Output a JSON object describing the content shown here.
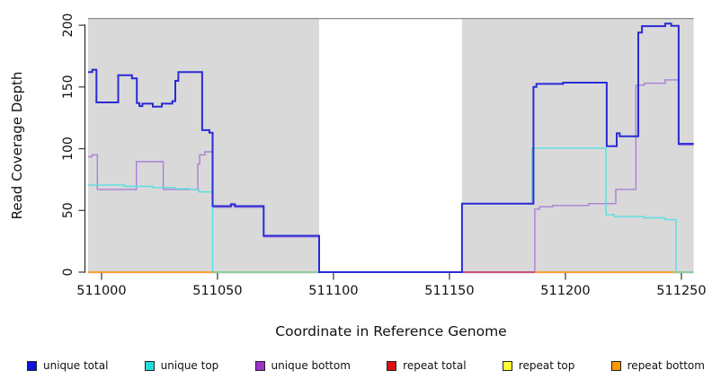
{
  "chart_data": {
    "type": "line",
    "subtype": "step",
    "title": "",
    "xlabel": "Coordinate in Reference Genome",
    "ylabel": "Read Coverage Depth",
    "xlim": [
      510994.2,
      511255.3
    ],
    "ylim": [
      0,
      206
    ],
    "x_ticks": [
      511000,
      511050,
      511100,
      511150,
      511200,
      511250
    ],
    "x_tick_labels": [
      "511000",
      "511050",
      "511100",
      "511150",
      "511200",
      "511250"
    ],
    "y_ticks": [
      0,
      50,
      100,
      150,
      200
    ],
    "y_tick_labels": [
      "0",
      "50",
      "100",
      "150",
      "200"
    ],
    "plot_background": "#d9d9d9",
    "grid": false,
    "legend_position": "bottom",
    "masked_region": {
      "from": 511093.8,
      "to": 511155.4
    },
    "series": [
      {
        "name": "unique total",
        "color": "#2a2ad6",
        "width": 2,
        "draw": true,
        "steps": [
          [
            510994.2,
            162
          ],
          [
            510996.0,
            164
          ],
          [
            510997.8,
            137.5
          ],
          [
            511007.2,
            159.5
          ],
          [
            511013.1,
            157
          ],
          [
            511015.2,
            137
          ],
          [
            511016.3,
            134.5
          ],
          [
            511017.6,
            136.5
          ],
          [
            511022.1,
            134
          ],
          [
            511026.0,
            136.5
          ],
          [
            511030.5,
            138.5
          ],
          [
            511031.8,
            155
          ],
          [
            511033.1,
            162
          ],
          [
            511043.4,
            115
          ],
          [
            511046.5,
            113
          ],
          [
            511047.9,
            53.5
          ],
          [
            511055.8,
            55
          ],
          [
            511057.5,
            53.5
          ],
          [
            511069.9,
            29.5
          ],
          [
            511093.8,
            0
          ],
          [
            511155.4,
            55.5
          ],
          [
            511186.2,
            150
          ],
          [
            511187.5,
            152.5
          ],
          [
            511199.0,
            153.5
          ],
          [
            511217.8,
            102
          ],
          [
            511222.1,
            112.5
          ],
          [
            511223.4,
            110
          ],
          [
            511231.4,
            194
          ],
          [
            511233.0,
            199.3
          ],
          [
            511243.0,
            201.4
          ],
          [
            511245.6,
            199.5
          ],
          [
            511248.8,
            104
          ]
        ]
      },
      {
        "name": "unique top",
        "color": "#58dfe2",
        "width": 1.4,
        "draw": true,
        "steps": [
          [
            510994.2,
            70.5
          ],
          [
            511010.0,
            69.5
          ],
          [
            511022.0,
            68.5
          ],
          [
            511032.0,
            67.5
          ],
          [
            511038.0,
            67
          ],
          [
            511042.0,
            65
          ],
          [
            511047.9,
            0
          ],
          [
            511155.4,
            55.5
          ],
          [
            511185.5,
            100.5
          ],
          [
            511217.5,
            46.5
          ],
          [
            511221.0,
            45
          ],
          [
            511234.0,
            44
          ],
          [
            511243.0,
            42.5
          ],
          [
            511247.7,
            0
          ]
        ]
      },
      {
        "name": "unique bottom",
        "color": "#ab7fd8",
        "width": 1.4,
        "draw": true,
        "steps": [
          [
            510994.2,
            93.5
          ],
          [
            510996.0,
            95
          ],
          [
            510998.2,
            67
          ],
          [
            511015.0,
            89.5
          ],
          [
            511026.6,
            67
          ],
          [
            511041.5,
            87.5
          ],
          [
            511042.3,
            95
          ],
          [
            511044.6,
            97.5
          ],
          [
            511047.9,
            52.5
          ],
          [
            511055.8,
            54
          ],
          [
            511057.5,
            52.5
          ],
          [
            511069.9,
            28.5
          ],
          [
            511093.8,
            0
          ],
          [
            511186.8,
            51
          ],
          [
            511188.8,
            53
          ],
          [
            511194.6,
            54
          ],
          [
            511210.1,
            55.5
          ],
          [
            511221.7,
            67
          ],
          [
            511230.4,
            151.5
          ],
          [
            511234.0,
            153
          ],
          [
            511243.0,
            155.8
          ],
          [
            511248.8,
            103
          ]
        ]
      },
      {
        "name": "repeat total",
        "color": "#cc2222",
        "width": 1.4,
        "draw": false,
        "steps": [
          [
            510994.2,
            0
          ]
        ]
      },
      {
        "name": "repeat top",
        "color": "#eeee22",
        "width": 1.4,
        "draw": false,
        "steps": [
          [
            510994.2,
            0
          ]
        ]
      },
      {
        "name": "repeat bottom",
        "color": "#ff9a1a",
        "width": 1.4,
        "draw": false,
        "steps": [
          [
            510994.2,
            0
          ]
        ]
      }
    ],
    "baseline_segments": [
      {
        "from": 510994.2,
        "to": 511047.9,
        "color": "#ff9a1a"
      },
      {
        "from": 511047.9,
        "to": 511093.8,
        "color": "#8fcb8f"
      },
      {
        "from": 511155.4,
        "to": 511186.8,
        "color": "#cb4573"
      },
      {
        "from": 511186.8,
        "to": 511246.9,
        "color": "#ff9a1a"
      },
      {
        "from": 511246.9,
        "to": 511255.3,
        "color": "#8fcb8f"
      }
    ],
    "legend": [
      {
        "label": "unique total",
        "fill": "#1111dd"
      },
      {
        "label": "unique top",
        "fill": "#22dddd"
      },
      {
        "label": "unique bottom",
        "fill": "#9933cc"
      },
      {
        "label": "repeat total",
        "fill": "#dd1111"
      },
      {
        "label": "repeat top",
        "fill": "#ffff33"
      },
      {
        "label": "repeat bottom",
        "fill": "#ff9900"
      }
    ]
  }
}
